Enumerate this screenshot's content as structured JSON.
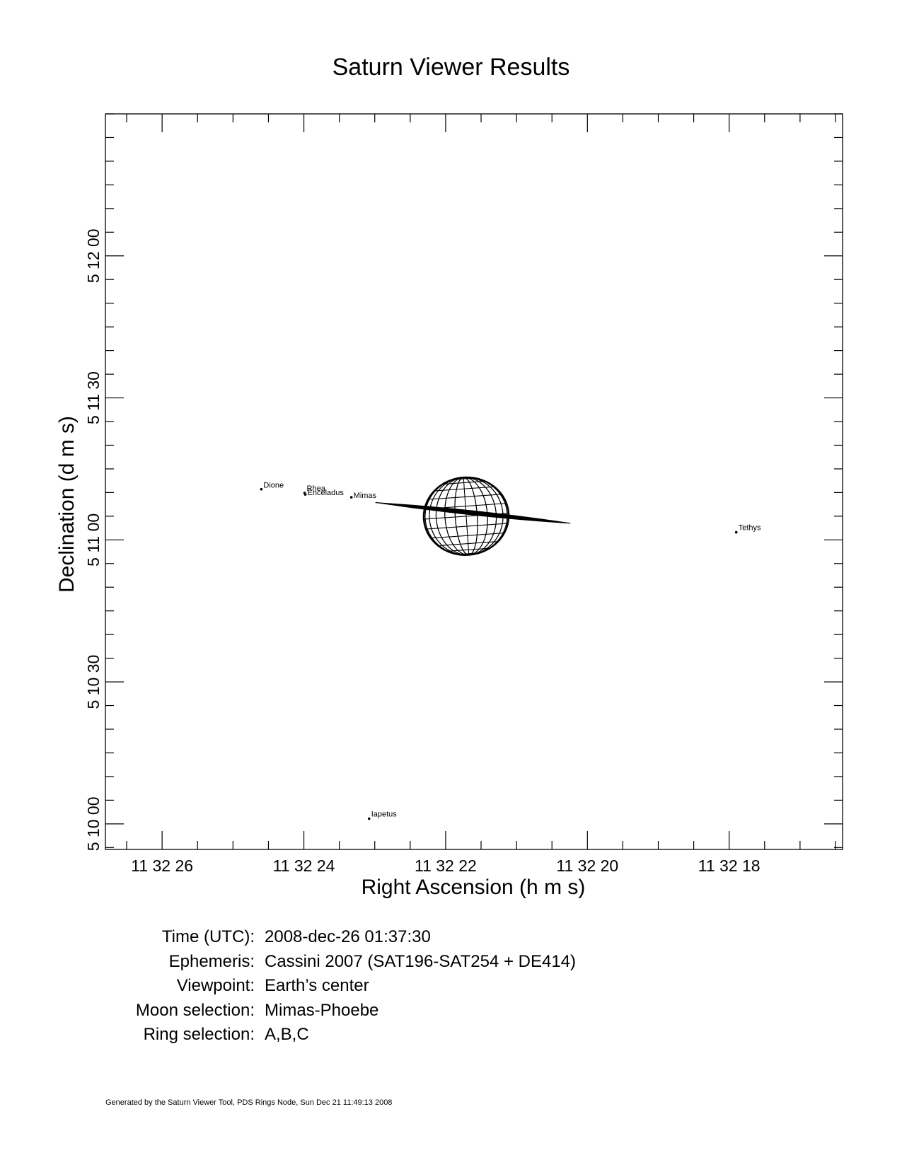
{
  "title": "Saturn Viewer Results",
  "chart_data": {
    "type": "scatter",
    "title": "Saturn Viewer Results",
    "xlabel": "Right Ascension (h m s)",
    "ylabel": "Declination (d m s)",
    "x_units": "seconds of right ascension past 11h 32m",
    "y_units": "arcseconds of declination past 5d 10m",
    "x_reversed": true,
    "xlim": [
      26.8,
      16.4
    ],
    "ylim": [
      -5.4,
      150.0
    ],
    "x_ticks": [
      {
        "value": 26,
        "label": "11 32 26"
      },
      {
        "value": 24,
        "label": "11 32 24"
      },
      {
        "value": 22,
        "label": "11 32 22"
      },
      {
        "value": 20,
        "label": "11 32 20"
      },
      {
        "value": 18,
        "label": "11 32 18"
      }
    ],
    "x_minor_step": 0.5,
    "y_ticks": [
      {
        "value": 0,
        "label": "5 10 00"
      },
      {
        "value": 30,
        "label": "5 10 30"
      },
      {
        "value": 60,
        "label": "5 11 00"
      },
      {
        "value": 90,
        "label": "5 11 30"
      },
      {
        "value": 120,
        "label": "5 12 00"
      }
    ],
    "y_minor_step": 5,
    "grid": false,
    "moons": [
      {
        "name": "Dione",
        "x": 24.6,
        "y": 70.7
      },
      {
        "name": "Rhea",
        "x": 23.99,
        "y": 69.9
      },
      {
        "name": "Enceladus",
        "x": 23.98,
        "y": 69.6
      },
      {
        "name": "Mimas",
        "x": 23.33,
        "y": 69.0
      },
      {
        "name": "Tethys",
        "x": 17.9,
        "y": 61.6
      },
      {
        "name": "Iapetus",
        "x": 23.08,
        "y": 1.1
      }
    ],
    "saturn": {
      "center": [
        21.71,
        65.0
      ],
      "radius_ra_s": 0.6,
      "radius_dec_arcsec": 8.2,
      "ring_ends": [
        [
          22.99,
          67.9
        ],
        [
          20.24,
          63.5
        ]
      ],
      "ring_half_width_arcsec": 0.45
    }
  },
  "info": [
    {
      "label": "Time (UTC):",
      "value": "2008-dec-26 01:37:30"
    },
    {
      "label": "Ephemeris:",
      "value": "Cassini 2007 (SAT196-SAT254 + DE414)"
    },
    {
      "label": "Viewpoint:",
      "value": "Earth’s center"
    },
    {
      "label": "Moon selection:",
      "value": "Mimas-Phoebe"
    },
    {
      "label": "Ring selection:",
      "value": "A,B,C"
    }
  ],
  "footer": "Generated by the Saturn Viewer Tool, PDS Rings Node, Sun Dec 21 11:49:13 2008"
}
